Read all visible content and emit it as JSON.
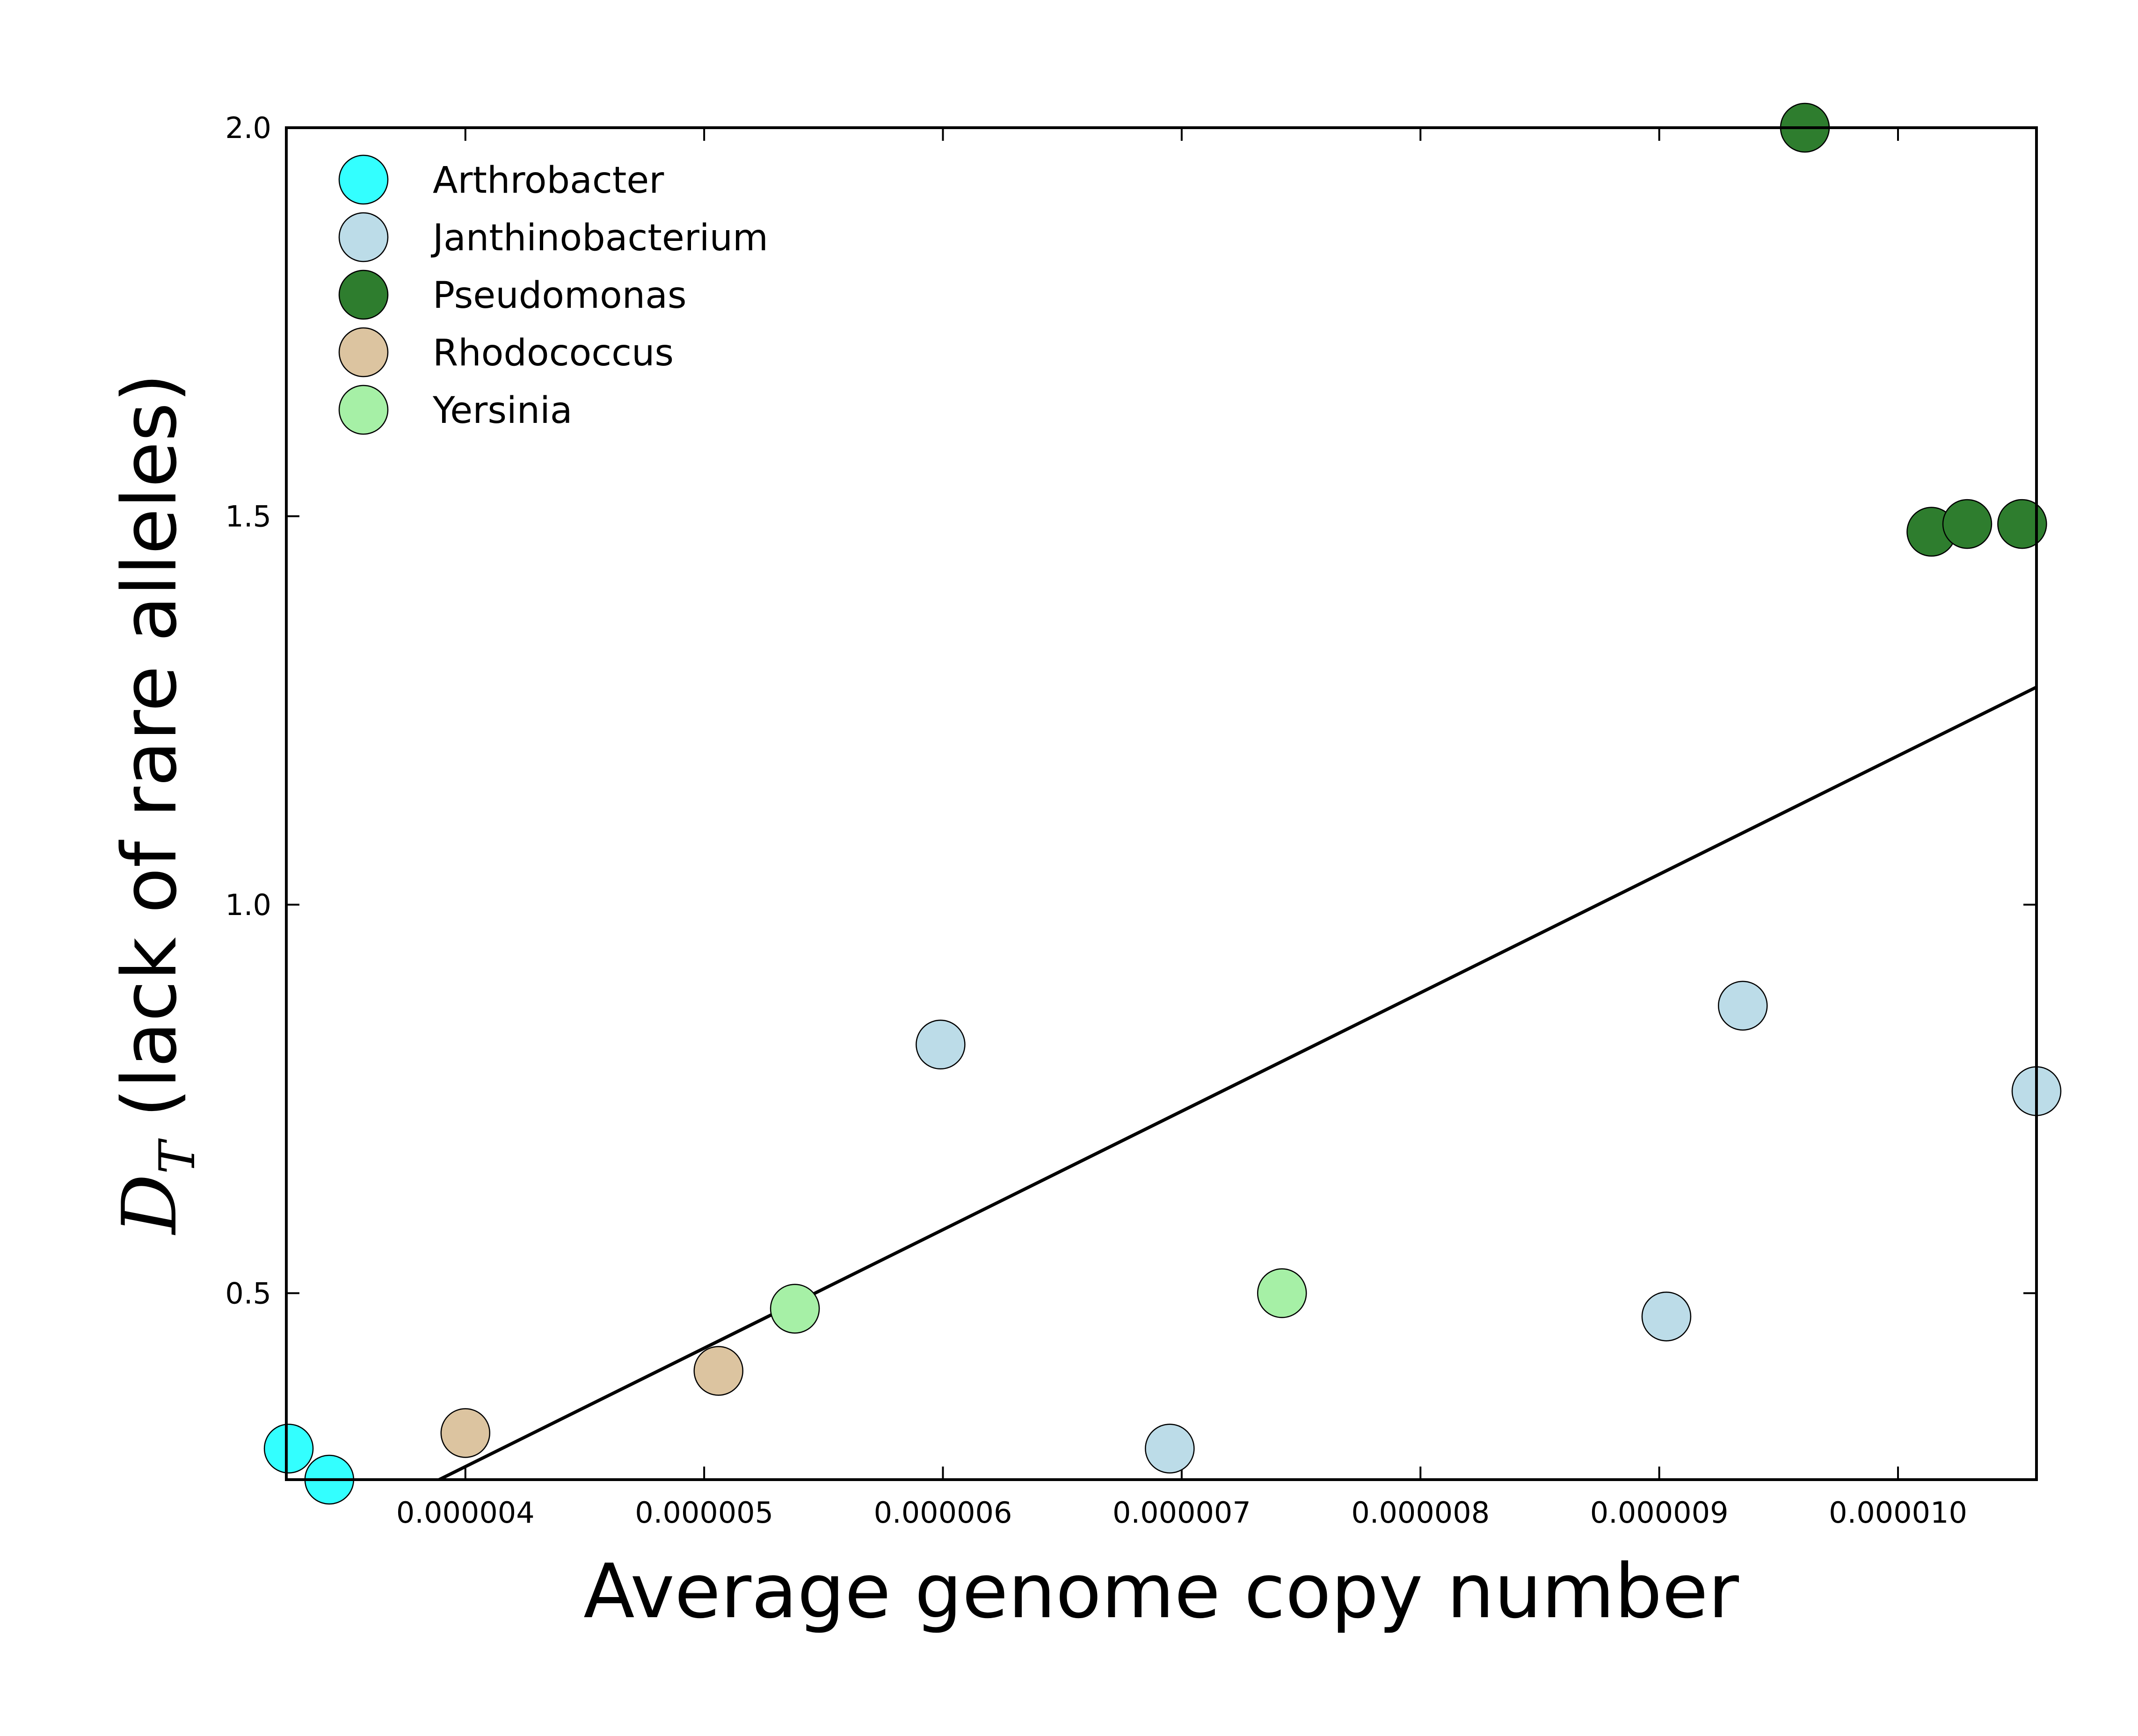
{
  "chart_data": {
    "type": "scatter",
    "xlabel": "Average genome copy number",
    "ylabel": {
      "math_symbol": "D",
      "math_subscript": "T",
      "text": " (lack of rare alleles)"
    },
    "xlim": [
      3.25e-06,
      1.058e-05
    ],
    "ylim": [
      0.26,
      2.0
    ],
    "x_ticks": [
      {
        "value": 4e-06,
        "label": "0.000004"
      },
      {
        "value": 5e-06,
        "label": "0.000005"
      },
      {
        "value": 6e-06,
        "label": "0.000006"
      },
      {
        "value": 7e-06,
        "label": "0.000007"
      },
      {
        "value": 8e-06,
        "label": "0.000008"
      },
      {
        "value": 9e-06,
        "label": "0.000009"
      },
      {
        "value": 1e-05,
        "label": "0.000010"
      }
    ],
    "y_ticks": [
      {
        "value": 0.5,
        "label": "0.5"
      },
      {
        "value": 1.0,
        "label": "1.0"
      },
      {
        "value": 1.5,
        "label": "1.5"
      },
      {
        "value": 2.0,
        "label": "2.0"
      }
    ],
    "grid": false,
    "legend_position": "top-left",
    "series": [
      {
        "name": "Arthrobacter",
        "color": "#33ffff",
        "points": [
          {
            "x": 3.26e-06,
            "y": 0.3
          },
          {
            "x": 3.43e-06,
            "y": 0.26
          }
        ]
      },
      {
        "name": "Janthinobacterium",
        "color": "#bcdce8",
        "points": [
          {
            "x": 5.99e-06,
            "y": 0.82
          },
          {
            "x": 6.95e-06,
            "y": 0.3
          },
          {
            "x": 9.03e-06,
            "y": 0.47
          },
          {
            "x": 9.35e-06,
            "y": 0.87
          },
          {
            "x": 1.058e-05,
            "y": 0.76
          }
        ]
      },
      {
        "name": "Pseudomonas",
        "color": "#2e7d2e",
        "points": [
          {
            "x": 9.61e-06,
            "y": 2.0
          },
          {
            "x": 1.014e-05,
            "y": 1.48
          },
          {
            "x": 1.029e-05,
            "y": 1.49
          },
          {
            "x": 1.052e-05,
            "y": 1.49
          }
        ]
      },
      {
        "name": "Rhodococcus",
        "color": "#dcc4a0",
        "points": [
          {
            "x": 4e-06,
            "y": 0.32
          },
          {
            "x": 5.06e-06,
            "y": 0.4
          }
        ]
      },
      {
        "name": "Yersinia",
        "color": "#a6f0a6",
        "points": [
          {
            "x": 5.38e-06,
            "y": 0.48
          },
          {
            "x": 7.42e-06,
            "y": 0.5
          }
        ]
      }
    ],
    "fit_line": {
      "x": [
        3.89e-06,
        1.058e-05
      ],
      "y": [
        0.26,
        1.28
      ],
      "color": "#000000"
    }
  }
}
